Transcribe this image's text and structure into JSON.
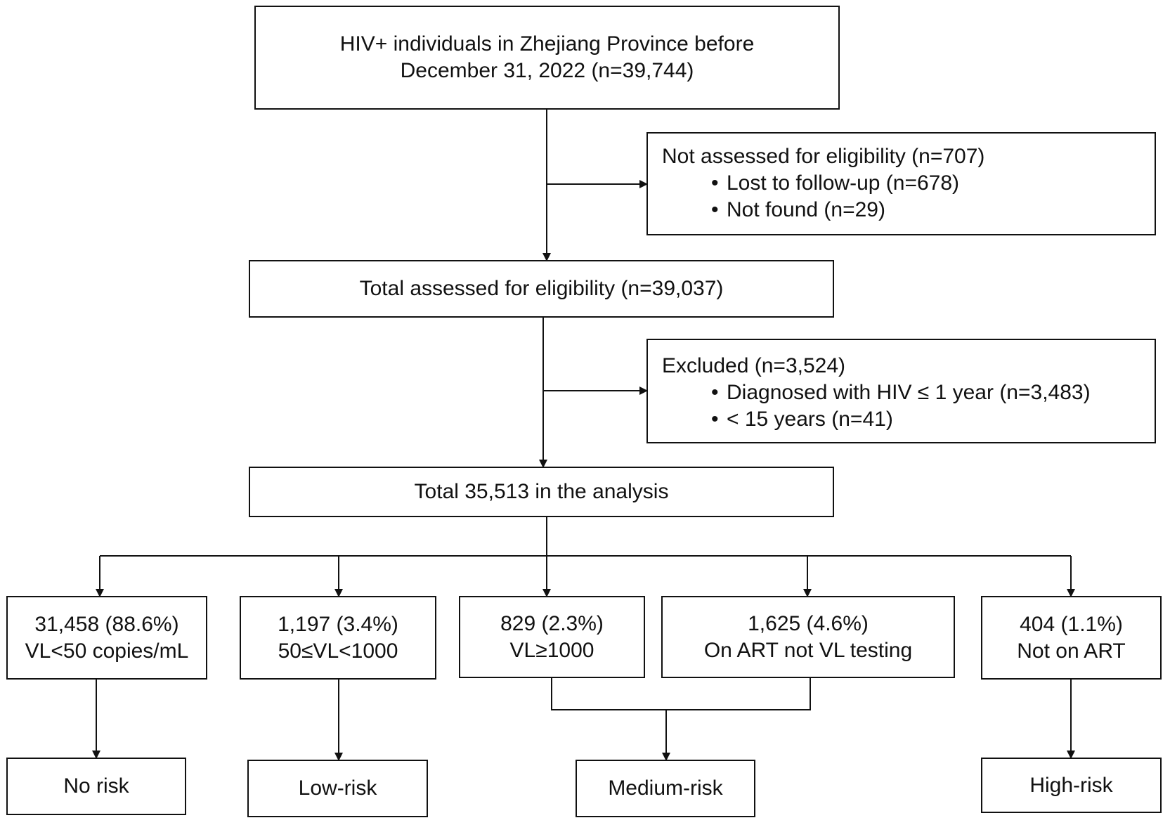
{
  "diagram": {
    "top_box": {
      "line1": "HIV+ individuals in Zhejiang Province before",
      "line2": "December 31, 2022 (n=39,744)"
    },
    "not_assessed": {
      "title": "Not assessed for eligibility (n=707)",
      "items": [
        "Lost to follow-up (n=678)",
        "Not found (n=29)"
      ]
    },
    "assessed_box": {
      "text": "Total assessed for eligibility (n=39,037)"
    },
    "excluded": {
      "title": "Excluded (n=3,524)",
      "items": [
        "Diagnosed with HIV ≤ 1 year (n=3,483)",
        "< 15 years (n=41)"
      ]
    },
    "analysis_box": {
      "text": "Total 35,513 in the analysis"
    },
    "groups": [
      {
        "line1": "31,458 (88.6%)",
        "line2": "VL<50 copies/mL"
      },
      {
        "line1": "1,197 (3.4%)",
        "line2": "50≤VL<1000"
      },
      {
        "line1": "829 (2.3%)",
        "line2": "VL≥1000"
      },
      {
        "line1": "1,625 (4.6%)",
        "line2": "On ART not VL testing"
      },
      {
        "line1": "404 (1.1%)",
        "line2": "Not on ART"
      }
    ],
    "outcomes": [
      "No risk",
      "Low-risk",
      "Medium-risk",
      "High-risk"
    ],
    "bullet_symbol": "•",
    "line_color": "#111111"
  }
}
